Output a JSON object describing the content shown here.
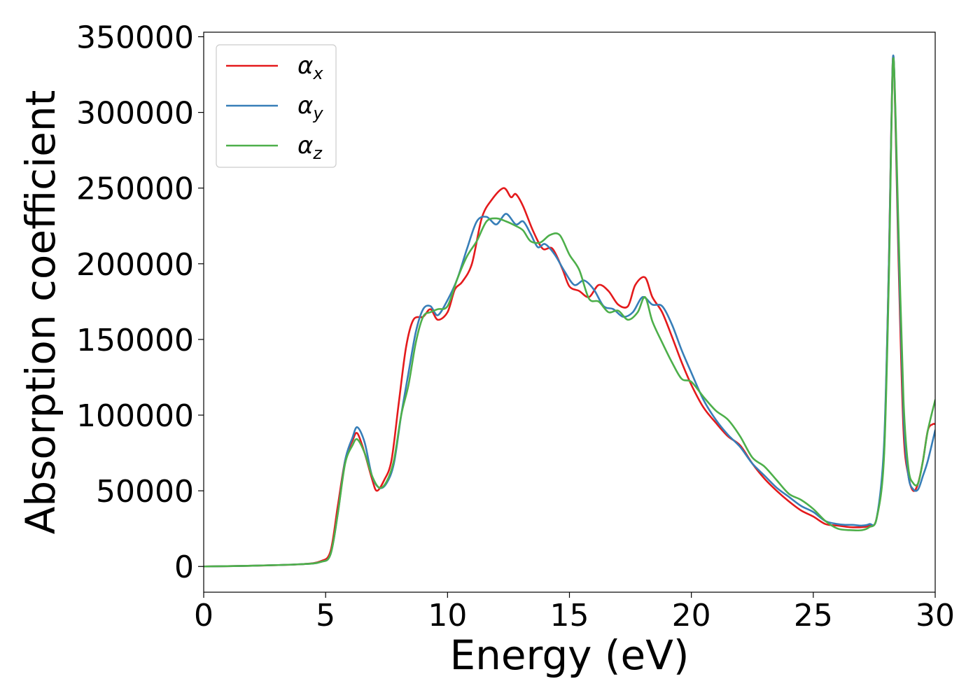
{
  "chart_data": {
    "type": "line",
    "title": "",
    "xlabel": "Energy (eV)",
    "ylabel": "Absorption coefficient",
    "xlim": [
      0,
      30
    ],
    "ylim": [
      -17000,
      353000
    ],
    "xticks": [
      0,
      5,
      10,
      15,
      20,
      25,
      30
    ],
    "xtick_labels": [
      "0",
      "5",
      "10",
      "15",
      "20",
      "25",
      "30"
    ],
    "yticks": [
      0,
      50000,
      100000,
      150000,
      200000,
      250000,
      300000,
      350000
    ],
    "ytick_labels": [
      "0",
      "50000",
      "100000",
      "150000",
      "200000",
      "250000",
      "300000",
      "350000"
    ],
    "grid": false,
    "legend_position": "top-left",
    "series": [
      {
        "name": "α_x",
        "label_base": "α",
        "label_sub": "x",
        "color": "#e41a1c",
        "x": [
          0,
          2,
          4,
          4.8,
          5.2,
          5.5,
          5.8,
          6.1,
          6.3,
          6.6,
          6.9,
          7.1,
          7.4,
          7.7,
          8.0,
          8.3,
          8.6,
          9.0,
          9.3,
          9.6,
          10.0,
          10.3,
          10.6,
          11.0,
          11.4,
          11.8,
          12.3,
          12.6,
          12.8,
          13.1,
          13.5,
          13.9,
          14.3,
          14.7,
          15.0,
          15.4,
          15.8,
          16.2,
          16.6,
          17.0,
          17.4,
          17.7,
          18.1,
          18.4,
          18.8,
          19.2,
          19.6,
          20.0,
          20.5,
          21.0,
          21.5,
          22.0,
          22.5,
          23.0,
          23.5,
          24.0,
          24.5,
          25.0,
          25.5,
          26.0,
          26.5,
          27.0,
          27.3,
          27.6,
          27.9,
          28.1,
          28.2,
          28.3,
          28.5,
          28.7,
          28.9,
          29.1,
          29.3,
          29.5,
          29.7,
          29.9,
          30.0
        ],
        "y": [
          0,
          500,
          1500,
          3500,
          10000,
          40000,
          70000,
          83000,
          88000,
          75000,
          58000,
          50000,
          57000,
          70000,
          108000,
          145000,
          163000,
          165000,
          170000,
          163000,
          168000,
          183000,
          188000,
          200000,
          230000,
          242000,
          250000,
          244000,
          246000,
          238000,
          222000,
          210000,
          210000,
          197000,
          185000,
          182000,
          178000,
          186000,
          182000,
          173000,
          172000,
          186000,
          191000,
          178000,
          168000,
          152000,
          135000,
          120000,
          105000,
          95000,
          86000,
          80000,
          68000,
          58000,
          50000,
          43000,
          37000,
          33000,
          28000,
          27000,
          26000,
          26000,
          27000,
          32000,
          75000,
          200000,
          290000,
          334000,
          200000,
          90000,
          60000,
          50000,
          55000,
          70000,
          90000,
          94000,
          94000
        ]
      },
      {
        "name": "α_y",
        "label_base": "α",
        "label_sub": "y",
        "color": "#377eb8",
        "x": [
          0,
          2,
          4,
          4.8,
          5.2,
          5.5,
          5.8,
          6.1,
          6.3,
          6.6,
          6.9,
          7.2,
          7.5,
          7.8,
          8.1,
          8.4,
          8.7,
          9.0,
          9.3,
          9.6,
          10.0,
          10.4,
          10.8,
          11.2,
          11.6,
          12.0,
          12.4,
          12.8,
          13.1,
          13.4,
          13.7,
          14.0,
          14.4,
          14.8,
          15.2,
          15.6,
          16.0,
          16.4,
          16.8,
          17.2,
          17.6,
          18.0,
          18.4,
          18.8,
          19.2,
          19.6,
          20.0,
          20.5,
          21.0,
          21.5,
          22.0,
          22.5,
          23.0,
          23.5,
          24.0,
          24.5,
          25.0,
          25.5,
          26.0,
          26.3,
          26.6,
          27.0,
          27.3,
          27.6,
          27.9,
          28.1,
          28.2,
          28.3,
          28.5,
          28.7,
          28.9,
          29.1,
          29.3,
          29.5,
          29.7,
          30.0
        ],
        "y": [
          0,
          500,
          1500,
          3000,
          8000,
          35000,
          70000,
          85000,
          92000,
          82000,
          60000,
          52000,
          55000,
          68000,
          100000,
          128000,
          155000,
          170000,
          172000,
          166000,
          176000,
          190000,
          210000,
          228000,
          231000,
          226000,
          233000,
          226000,
          228000,
          220000,
          211000,
          213000,
          206000,
          195000,
          186000,
          189000,
          183000,
          172000,
          170000,
          165000,
          168000,
          178000,
          173000,
          172000,
          160000,
          143000,
          128000,
          110000,
          97000,
          87000,
          79000,
          68000,
          60000,
          52000,
          46000,
          40000,
          36000,
          30000,
          28000,
          27500,
          27500,
          27000,
          28000,
          32000,
          80000,
          200000,
          290000,
          335000,
          210000,
          100000,
          60000,
          51000,
          51000,
          60000,
          70000,
          90000
        ]
      },
      {
        "name": "α_z",
        "label_base": "α",
        "label_sub": "z",
        "color": "#4daf4a",
        "x": [
          0,
          2,
          4,
          4.8,
          5.2,
          5.5,
          5.8,
          6.1,
          6.3,
          6.6,
          6.9,
          7.2,
          7.5,
          7.8,
          8.1,
          8.4,
          8.7,
          9.0,
          9.3,
          9.6,
          10.0,
          10.4,
          10.8,
          11.2,
          11.6,
          12.0,
          12.4,
          12.8,
          13.1,
          13.4,
          13.8,
          14.2,
          14.6,
          15.0,
          15.4,
          15.8,
          16.2,
          16.6,
          17.0,
          17.4,
          17.8,
          18.1,
          18.4,
          18.8,
          19.2,
          19.6,
          20.0,
          20.5,
          21.0,
          21.5,
          22.0,
          22.5,
          23.0,
          23.5,
          24.0,
          24.5,
          25.0,
          25.5,
          26.0,
          26.5,
          27.0,
          27.3,
          27.6,
          27.9,
          28.1,
          28.2,
          28.3,
          28.5,
          28.7,
          28.9,
          29.1,
          29.3,
          29.5,
          29.7,
          30.0
        ],
        "y": [
          0,
          500,
          1500,
          3000,
          8000,
          35000,
          68000,
          80000,
          84000,
          75000,
          60000,
          52000,
          56000,
          70000,
          100000,
          120000,
          148000,
          165000,
          168000,
          170000,
          172000,
          190000,
          205000,
          215000,
          228000,
          230000,
          228000,
          225000,
          222000,
          215000,
          214000,
          219000,
          219000,
          206000,
          196000,
          177000,
          175000,
          168000,
          169000,
          163000,
          168000,
          178000,
          162000,
          148000,
          135000,
          124000,
          122000,
          112000,
          103000,
          97000,
          86000,
          72000,
          66000,
          57000,
          48000,
          44000,
          38000,
          30000,
          25000,
          24000,
          24000,
          26000,
          32000,
          72000,
          190000,
          285000,
          334000,
          220000,
          110000,
          65000,
          55000,
          55000,
          70000,
          90000,
          110000
        ]
      }
    ]
  }
}
